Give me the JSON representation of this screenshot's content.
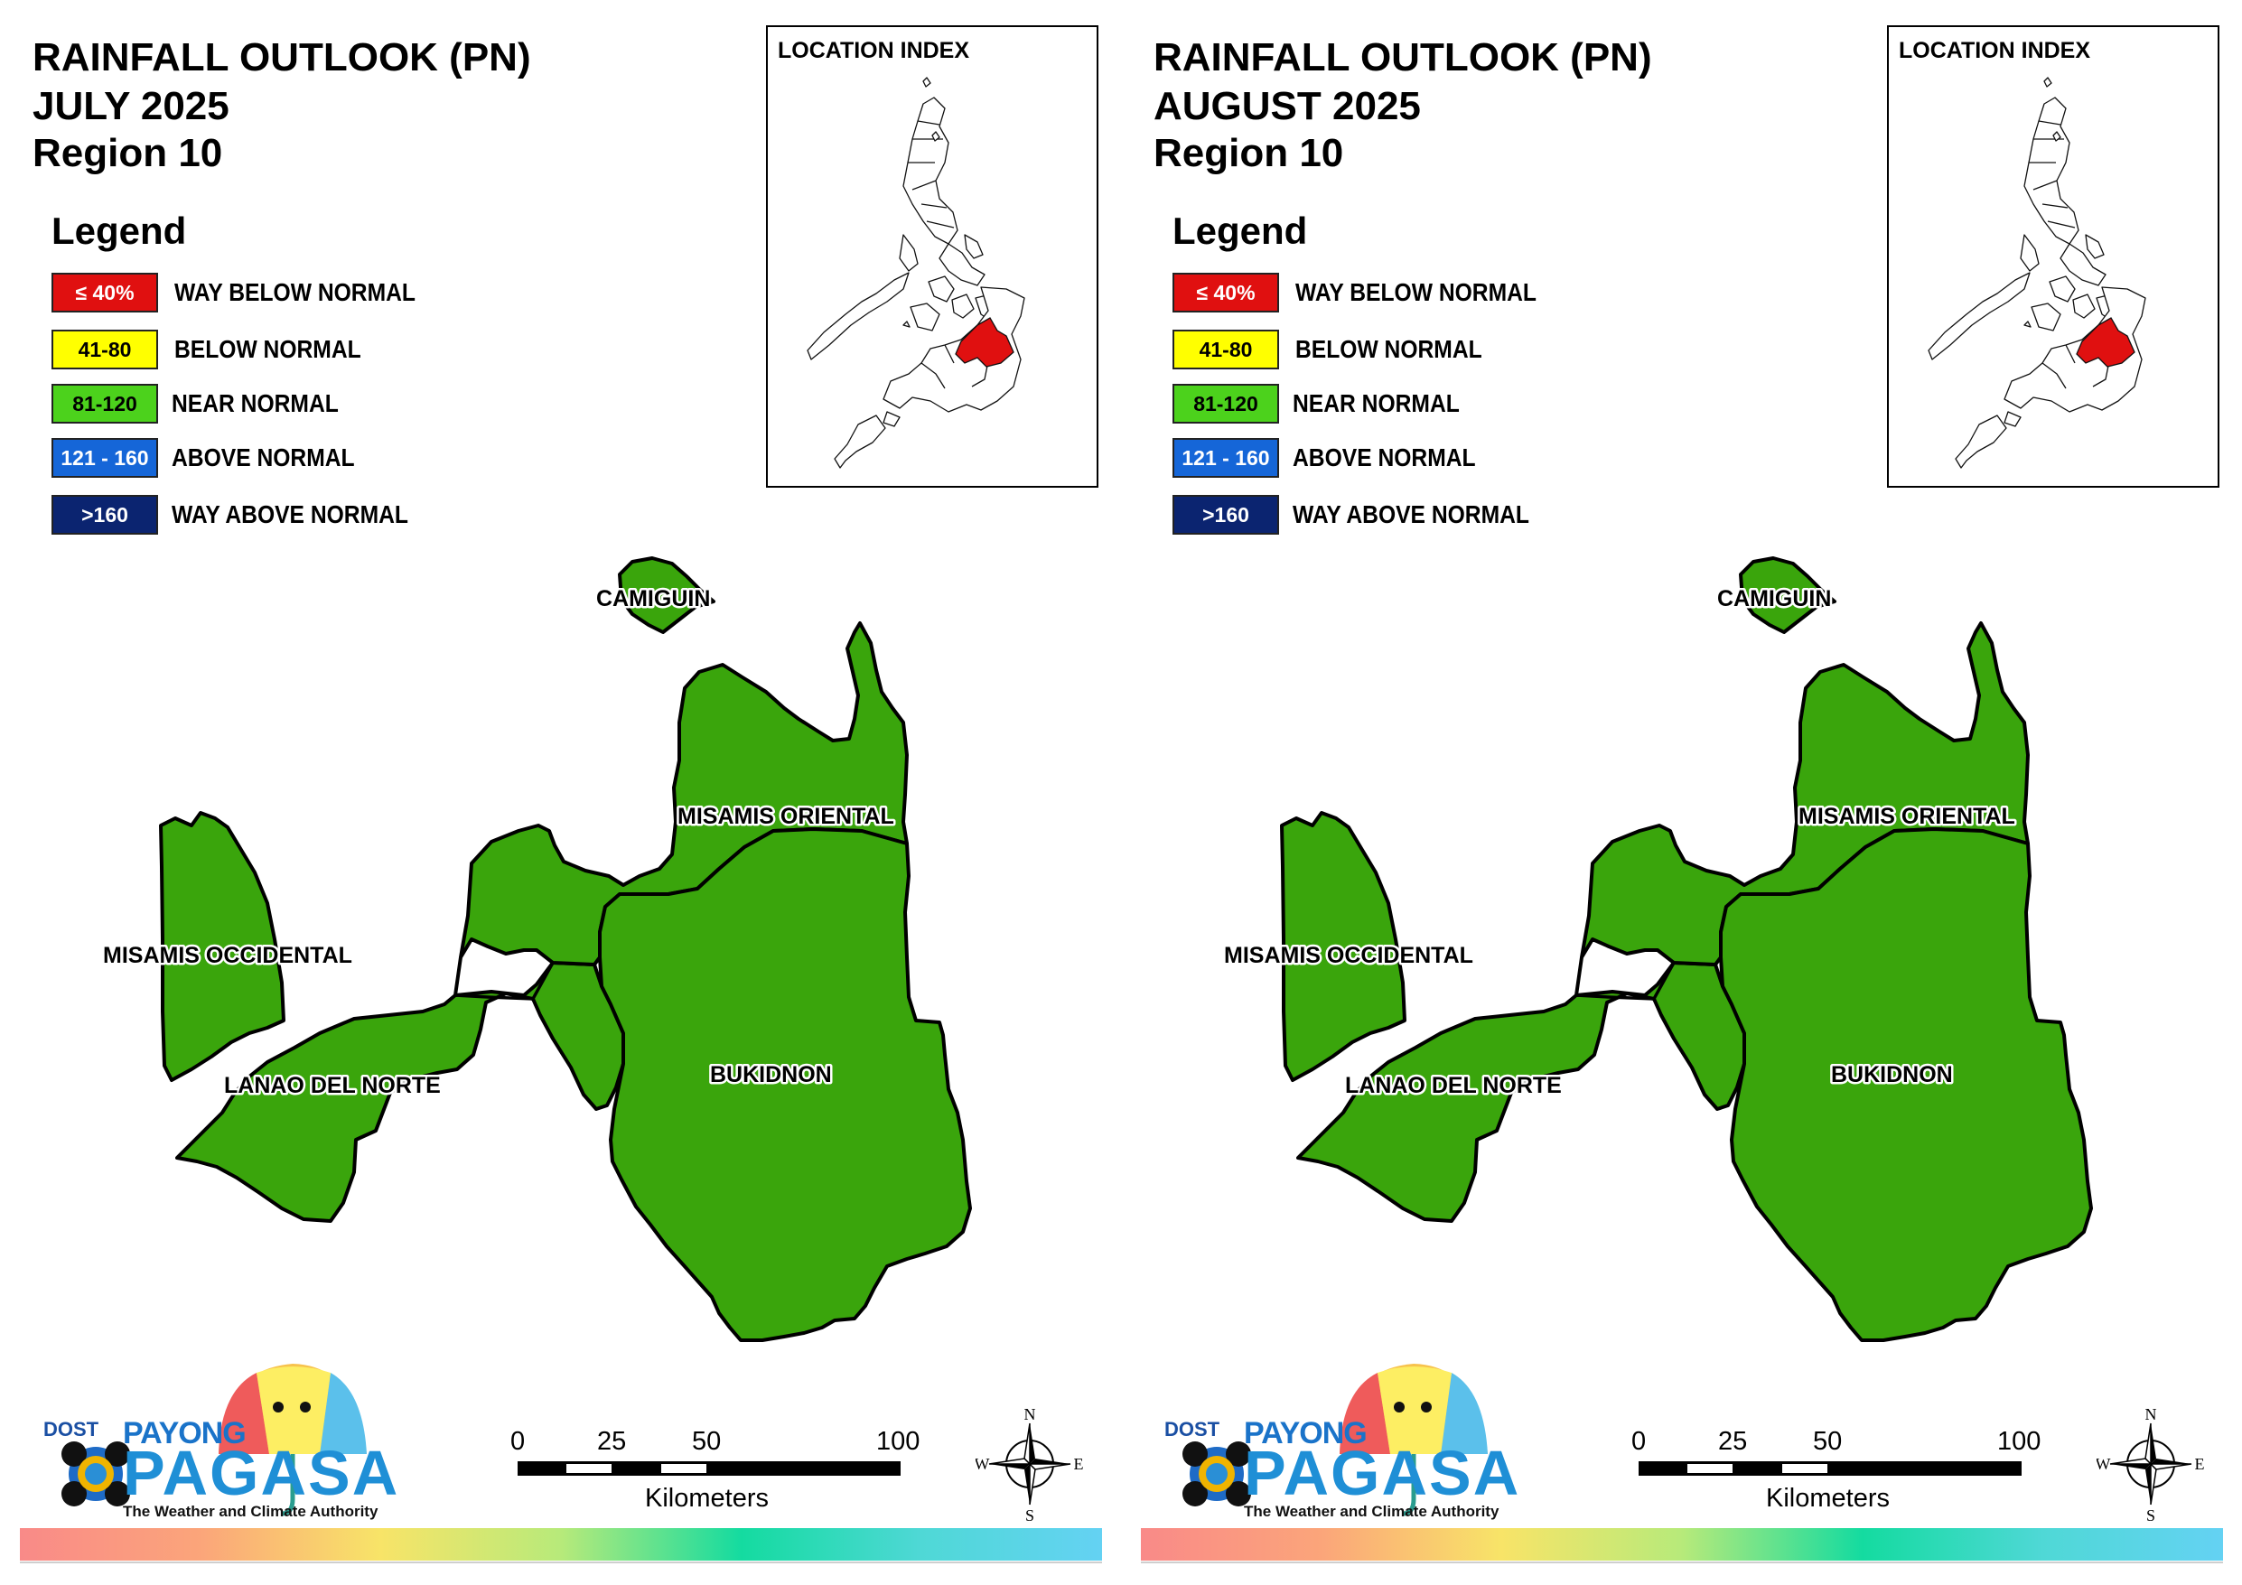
{
  "maps": [
    {
      "title_line1": "RAINFALL OUTLOOK (PN)",
      "title_line2": "JULY 2025",
      "title_line3": "Region 10",
      "legend_title": "Legend",
      "legend": [
        {
          "range": "≤ 40%",
          "label": "WAY BELOW NORMAL",
          "color": "#e01010",
          "text_color": "#ffffff"
        },
        {
          "range": "41-80",
          "label": "BELOW NORMAL",
          "color": "#ffff00",
          "text_color": "#000000"
        },
        {
          "range": "81-120",
          "label": "NEAR NORMAL",
          "color": "#4cd21c",
          "text_color": "#000000"
        },
        {
          "range": "121 - 160",
          "label": "ABOVE NORMAL",
          "color": "#1566d8",
          "text_color": "#ffffff"
        },
        {
          "range": ">160",
          "label": "WAY ABOVE NORMAL",
          "color": "#0b2470",
          "text_color": "#ffffff"
        }
      ],
      "location_index_title": "LOCATION INDEX",
      "province_fill": "#3aa50c",
      "region_highlight": "#e01010",
      "provinces": {
        "camiguin": "CAMIGUIN",
        "misamis_oriental": "MISAMIS ORIENTAL",
        "misamis_occidental": "MISAMIS OCCIDENTAL",
        "lanao_del_norte": "LANAO DEL NORTE",
        "bukidnon": "BUKIDNON"
      },
      "scale": {
        "ticks": [
          "0",
          "25",
          "50",
          "100"
        ],
        "unit": "Kilometers"
      },
      "compass": {
        "n": "N",
        "s": "S",
        "e": "E",
        "w": "W"
      },
      "logo": {
        "dost": "DOST",
        "payong": "PAYONG",
        "pagasa": "PAGASA",
        "tagline": "The Weather and Climate Authority"
      }
    },
    {
      "title_line1": "RAINFALL OUTLOOK (PN)",
      "title_line2": "AUGUST 2025",
      "title_line3": "Region 10",
      "legend_title": "Legend",
      "legend": [
        {
          "range": "≤ 40%",
          "label": "WAY BELOW NORMAL",
          "color": "#e01010",
          "text_color": "#ffffff"
        },
        {
          "range": "41-80",
          "label": "BELOW NORMAL",
          "color": "#ffff00",
          "text_color": "#000000"
        },
        {
          "range": "81-120",
          "label": "NEAR NORMAL",
          "color": "#4cd21c",
          "text_color": "#000000"
        },
        {
          "range": "121 - 160",
          "label": "ABOVE NORMAL",
          "color": "#1566d8",
          "text_color": "#ffffff"
        },
        {
          "range": ">160",
          "label": "WAY ABOVE NORMAL",
          "color": "#0b2470",
          "text_color": "#ffffff"
        }
      ],
      "location_index_title": "LOCATION INDEX",
      "province_fill": "#3aa50c",
      "region_highlight": "#e01010",
      "provinces": {
        "camiguin": "CAMIGUIN",
        "misamis_oriental": "MISAMIS ORIENTAL",
        "misamis_occidental": "MISAMIS OCCIDENTAL",
        "lanao_del_norte": "LANAO DEL NORTE",
        "bukidnon": "BUKIDNON"
      },
      "scale": {
        "ticks": [
          "0",
          "25",
          "50",
          "100"
        ],
        "unit": "Kilometers"
      },
      "compass": {
        "n": "N",
        "s": "S",
        "e": "E",
        "w": "W"
      },
      "logo": {
        "dost": "DOST",
        "payong": "PAYONG",
        "pagasa": "PAGASA",
        "tagline": "The Weather and Climate Authority"
      }
    }
  ]
}
